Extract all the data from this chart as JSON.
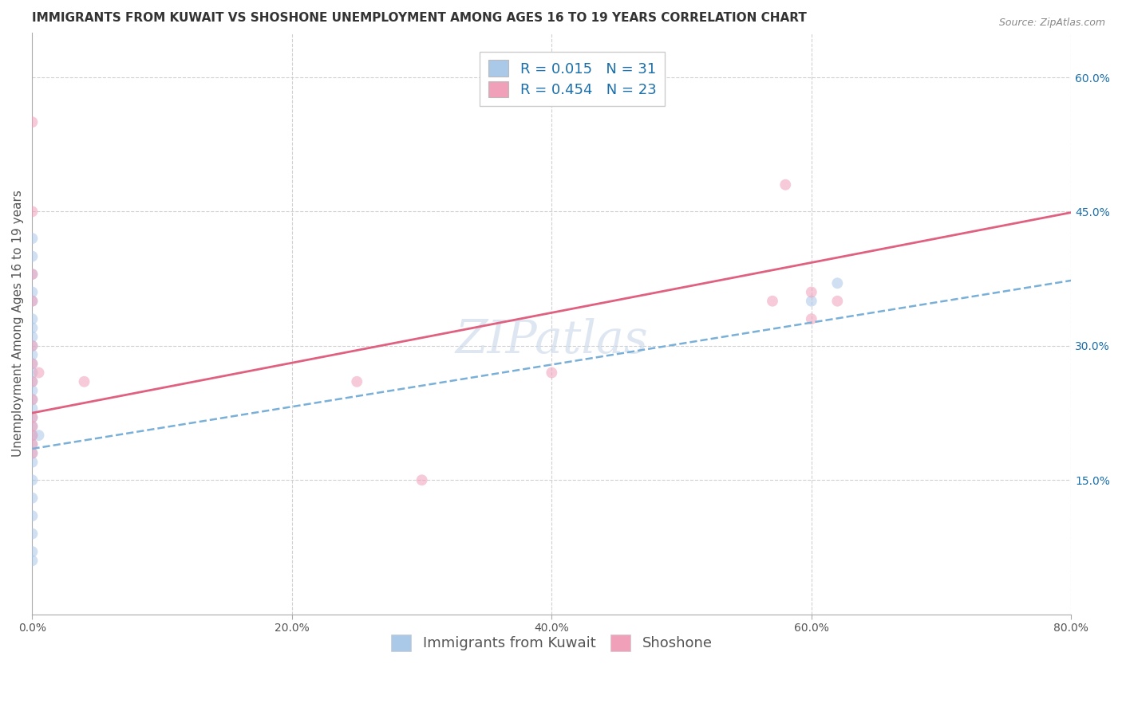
{
  "title": "IMMIGRANTS FROM KUWAIT VS SHOSHONE UNEMPLOYMENT AMONG AGES 16 TO 19 YEARS CORRELATION CHART",
  "source_text": "Source: ZipAtlas.com",
  "ylabel": "Unemployment Among Ages 16 to 19 years",
  "xlim": [
    0.0,
    0.8
  ],
  "ylim": [
    0.0,
    0.65
  ],
  "xticks": [
    0.0,
    0.2,
    0.4,
    0.6,
    0.8
  ],
  "xtick_labels": [
    "0.0%",
    "20.0%",
    "40.0%",
    "60.0%",
    "80.0%"
  ],
  "ytick_positions": [
    0.15,
    0.3,
    0.45,
    0.6
  ],
  "ytick_labels": [
    "15.0%",
    "30.0%",
    "45.0%",
    "60.0%"
  ],
  "background_color": "#ffffff",
  "grid_color": "#d0d0d0",
  "watermark": "ZIPatlas",
  "series": [
    {
      "name": "Immigrants from Kuwait",
      "R": 0.015,
      "N": 31,
      "color": "#aac8e8",
      "line_color": "#7ab0d8",
      "line_style": "--",
      "x": [
        0.0,
        0.0,
        0.0,
        0.0,
        0.0,
        0.0,
        0.0,
        0.0,
        0.0,
        0.0,
        0.0,
        0.0,
        0.0,
        0.0,
        0.0,
        0.0,
        0.0,
        0.0,
        0.0,
        0.0,
        0.0,
        0.0,
        0.0,
        0.0,
        0.0,
        0.0,
        0.0,
        0.0,
        0.005,
        0.6,
        0.62
      ],
      "y": [
        0.42,
        0.4,
        0.38,
        0.36,
        0.35,
        0.33,
        0.32,
        0.31,
        0.3,
        0.29,
        0.28,
        0.27,
        0.26,
        0.25,
        0.24,
        0.23,
        0.22,
        0.21,
        0.2,
        0.19,
        0.18,
        0.17,
        0.15,
        0.13,
        0.11,
        0.09,
        0.07,
        0.06,
        0.2,
        0.35,
        0.37
      ]
    },
    {
      "name": "Shoshone",
      "R": 0.454,
      "N": 23,
      "color": "#f0a0b8",
      "line_color": "#e06080",
      "line_style": "-",
      "x": [
        0.0,
        0.0,
        0.0,
        0.0,
        0.0,
        0.0,
        0.0,
        0.0,
        0.0,
        0.0,
        0.0,
        0.0,
        0.0,
        0.005,
        0.04,
        0.25,
        0.3,
        0.4,
        0.57,
        0.58,
        0.6,
        0.6,
        0.62
      ],
      "y": [
        0.55,
        0.45,
        0.38,
        0.35,
        0.3,
        0.28,
        0.26,
        0.24,
        0.22,
        0.21,
        0.2,
        0.19,
        0.18,
        0.27,
        0.26,
        0.26,
        0.15,
        0.27,
        0.35,
        0.48,
        0.33,
        0.36,
        0.35
      ]
    }
  ],
  "title_fontsize": 11,
  "axis_label_fontsize": 11,
  "tick_fontsize": 10,
  "legend_fontsize": 13,
  "source_fontsize": 9,
  "marker_size": 10,
  "marker_alpha": 0.55,
  "line_intercept_blue": 0.185,
  "line_slope_blue": 0.235,
  "line_intercept_pink": 0.225,
  "line_slope_pink": 0.28
}
